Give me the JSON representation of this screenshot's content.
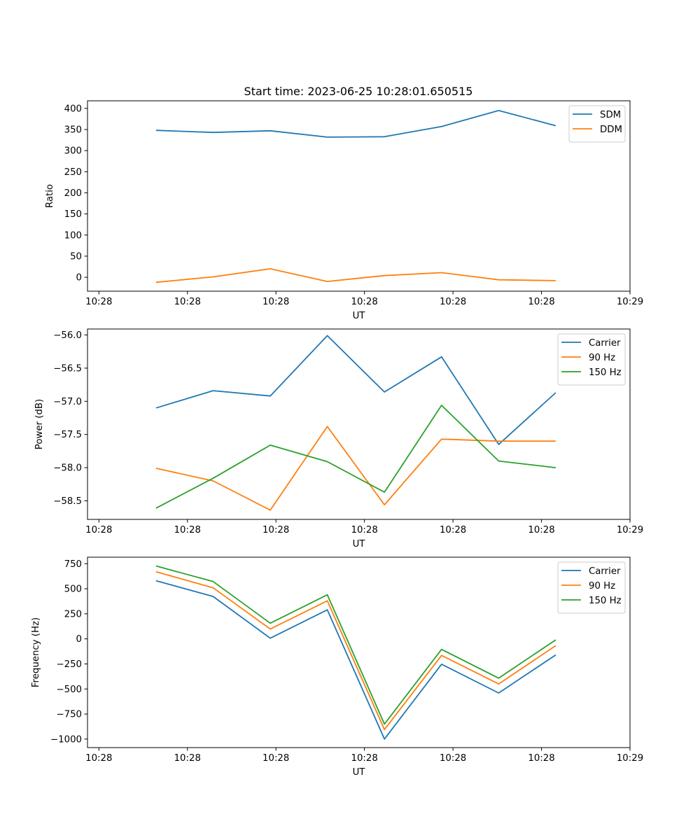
{
  "figure": {
    "title": "Start time: 2023-06-25 10:28:01.650515"
  },
  "chart_data": [
    {
      "type": "line",
      "xlabel": "UT",
      "ylabel": "Ratio",
      "x": [
        1,
        2,
        3,
        4,
        5,
        6,
        7,
        8
      ],
      "x_tick_values": [
        0,
        1.55,
        3.1,
        4.65,
        6.2,
        7.75,
        9.3
      ],
      "x_tick_labels": [
        "10:28",
        "10:28",
        "10:28",
        "10:28",
        "10:28",
        "10:28",
        "10:29"
      ],
      "xlim": [
        -0.2,
        9.3
      ],
      "ylim": [
        -33,
        418
      ],
      "y_ticks": [
        0,
        50,
        100,
        150,
        200,
        250,
        300,
        350,
        400
      ],
      "y_tick_labels": [
        "0",
        "50",
        "100",
        "150",
        "200",
        "250",
        "300",
        "350",
        "400"
      ],
      "legend_position": "top-right",
      "series": [
        {
          "name": "SDM",
          "color": "#1f77b4",
          "values": [
            348,
            343,
            347,
            332,
            333,
            357,
            395,
            359
          ]
        },
        {
          "name": "DDM",
          "color": "#ff7f0e",
          "values": [
            -12,
            1,
            20,
            -10,
            4,
            11,
            -6,
            -8
          ]
        }
      ]
    },
    {
      "type": "line",
      "xlabel": "UT",
      "ylabel": "Power (dB)",
      "x": [
        1,
        2,
        3,
        4,
        5,
        6,
        7,
        8
      ],
      "x_tick_values": [
        0,
        1.55,
        3.1,
        4.65,
        6.2,
        7.75,
        9.3
      ],
      "x_tick_labels": [
        "10:28",
        "10:28",
        "10:28",
        "10:28",
        "10:28",
        "10:28",
        "10:29"
      ],
      "xlim": [
        -0.2,
        9.3
      ],
      "ylim": [
        -58.78,
        -55.91
      ],
      "y_ticks": [
        -58.5,
        -58.0,
        -57.5,
        -57.0,
        -56.5,
        -56.0
      ],
      "y_tick_labels": [
        "−58.5",
        "−58.0",
        "−57.5",
        "−57.0",
        "−56.5",
        "−56.0"
      ],
      "legend_position": "top-right",
      "series": [
        {
          "name": "Carrier",
          "color": "#1f77b4",
          "values": [
            -57.1,
            -56.84,
            -56.92,
            -56.01,
            -56.86,
            -56.33,
            -57.65,
            -56.87
          ]
        },
        {
          "name": "90 Hz",
          "color": "#ff7f0e",
          "values": [
            -58.01,
            -58.2,
            -58.64,
            -57.38,
            -58.56,
            -57.57,
            -57.6,
            -57.6
          ]
        },
        {
          "name": "150 Hz",
          "color": "#2ca02c",
          "values": [
            -58.61,
            -58.16,
            -57.66,
            -57.91,
            -58.37,
            -57.06,
            -57.9,
            -58.0
          ]
        }
      ]
    },
    {
      "type": "line",
      "xlabel": "UT",
      "ylabel": "Frequency (Hz)",
      "x": [
        1,
        2,
        3,
        4,
        5,
        6,
        7,
        8
      ],
      "x_tick_values": [
        0,
        1.55,
        3.1,
        4.65,
        6.2,
        7.75,
        9.3
      ],
      "x_tick_labels": [
        "10:28",
        "10:28",
        "10:28",
        "10:28",
        "10:28",
        "10:28",
        "10:29"
      ],
      "xlim": [
        -0.2,
        9.3
      ],
      "ylim": [
        -1085,
        815
      ],
      "y_ticks": [
        -1000,
        -750,
        -500,
        -250,
        0,
        250,
        500,
        750
      ],
      "y_tick_labels": [
        "−1000",
        "−750",
        "−500",
        "−250",
        "0",
        "250",
        "500",
        "750"
      ],
      "legend_position": "top-right",
      "series": [
        {
          "name": "Carrier",
          "color": "#1f77b4",
          "values": [
            580,
            423,
            7,
            290,
            -1000,
            -253,
            -540,
            -160
          ]
        },
        {
          "name": "90 Hz",
          "color": "#ff7f0e",
          "values": [
            670,
            510,
            98,
            380,
            -905,
            -165,
            -450,
            -68
          ]
        },
        {
          "name": "150 Hz",
          "color": "#2ca02c",
          "values": [
            728,
            572,
            156,
            440,
            -850,
            -105,
            -392,
            -10
          ]
        }
      ]
    }
  ]
}
